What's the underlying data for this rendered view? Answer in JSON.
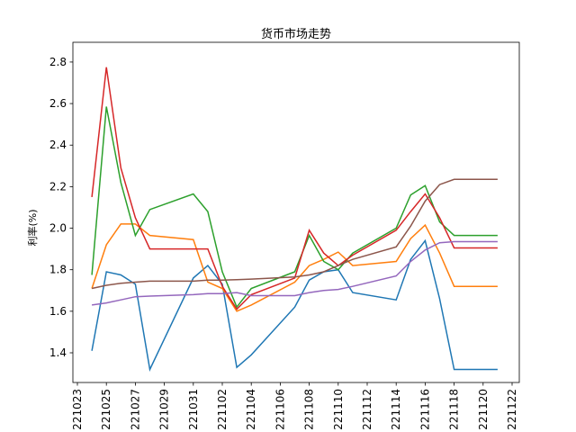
{
  "chart_data": {
    "type": "line",
    "title": "货币市场走势",
    "y_label": "利率(%)",
    "x": [
      "221024",
      "221025",
      "221026",
      "221027",
      "221028",
      "221031",
      "221101",
      "221102",
      "221103",
      "221104",
      "221107",
      "221108",
      "221109",
      "221110",
      "221111",
      "221114",
      "221115",
      "221116",
      "221117",
      "221118",
      "221121"
    ],
    "series": [
      {
        "color": "#1f77b4",
        "values": [
          1.41,
          1.79,
          1.775,
          1.73,
          1.32,
          1.76,
          1.82,
          1.73,
          1.33,
          1.39,
          1.62,
          1.75,
          1.79,
          1.8,
          1.69,
          1.655,
          1.85,
          1.94,
          1.66,
          1.32,
          1.32
        ]
      },
      {
        "color": "#ff7f0e",
        "values": [
          1.71,
          1.92,
          2.02,
          2.02,
          1.965,
          1.945,
          1.74,
          1.71,
          1.6,
          1.63,
          1.74,
          1.82,
          1.85,
          1.885,
          1.82,
          1.84,
          1.95,
          2.015,
          1.88,
          1.72,
          1.72
        ]
      },
      {
        "color": "#2ca02c",
        "values": [
          1.775,
          2.585,
          2.22,
          1.965,
          2.09,
          2.165,
          2.08,
          1.79,
          1.62,
          1.71,
          1.79,
          1.965,
          1.84,
          1.8,
          1.88,
          2.0,
          2.16,
          2.205,
          2.03,
          1.965,
          1.965
        ]
      },
      {
        "color": "#d62728",
        "values": [
          2.15,
          2.775,
          2.29,
          2.05,
          1.9,
          1.9,
          1.9,
          1.72,
          1.61,
          1.68,
          1.76,
          1.99,
          1.88,
          1.82,
          1.87,
          1.99,
          2.08,
          2.165,
          2.05,
          1.905,
          1.905
        ]
      },
      {
        "color": "#9467bd",
        "values": [
          1.63,
          1.64,
          1.655,
          1.67,
          1.673,
          1.68,
          1.685,
          1.685,
          1.69,
          1.675,
          1.675,
          1.69,
          1.7,
          1.705,
          1.72,
          1.77,
          1.84,
          1.895,
          1.93,
          1.935,
          1.935
        ]
      },
      {
        "color": "#8c564b",
        "values": [
          1.71,
          1.725,
          1.735,
          1.74,
          1.745,
          1.745,
          1.75,
          1.75,
          1.752,
          1.755,
          1.765,
          1.775,
          1.79,
          1.82,
          1.85,
          1.91,
          2.01,
          2.13,
          2.21,
          2.235,
          2.235
        ]
      }
    ],
    "xlim": [
      "221023",
      "221122"
    ],
    "xticks": [
      "221023",
      "221025",
      "221027",
      "221029",
      "221031",
      "221102",
      "221104",
      "221106",
      "221108",
      "221110",
      "221112",
      "221114",
      "221116",
      "221118",
      "221120",
      "221122"
    ],
    "ylim": [
      1.257,
      2.895
    ],
    "yticks": [
      1.4,
      1.6,
      1.8,
      {
        "value": 2,
        "label": "2.0"
      },
      2.2,
      2.4,
      2.6,
      2.8
    ]
  }
}
